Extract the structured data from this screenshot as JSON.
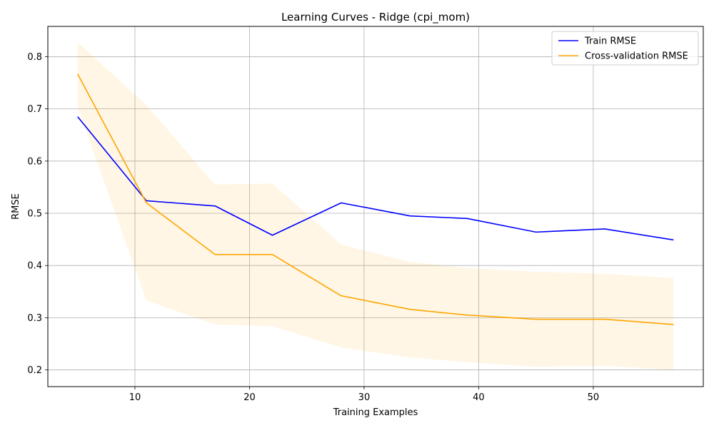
{
  "chart_data": {
    "type": "line",
    "title": "Learning Curves - Ridge (cpi_mom)",
    "xlabel": "Training Examples",
    "ylabel": "RMSE",
    "xlim": [
      2.4,
      59.6
    ],
    "ylim": [
      0.168,
      0.858
    ],
    "xticks": [
      10,
      20,
      30,
      40,
      50
    ],
    "yticks": [
      0.2,
      0.3,
      0.4,
      0.5,
      0.6,
      0.7,
      0.8
    ],
    "grid": true,
    "legend_position": "top-right",
    "x": [
      5,
      11,
      17,
      22,
      28,
      34,
      39,
      45,
      51,
      57
    ],
    "series": [
      {
        "name": "Train RMSE",
        "color": "#0000ff",
        "values": [
          0.685,
          0.524,
          0.514,
          0.458,
          0.52,
          0.495,
          0.49,
          0.464,
          0.47,
          0.449
        ]
      },
      {
        "name": "Cross-validation RMSE",
        "color": "#ffa500",
        "values": [
          0.767,
          0.52,
          0.421,
          0.421,
          0.342,
          0.316,
          0.305,
          0.297,
          0.297,
          0.287
        ],
        "band_upper": [
          0.828,
          0.707,
          0.555,
          0.557,
          0.44,
          0.407,
          0.395,
          0.388,
          0.384,
          0.376
        ],
        "band_lower": [
          0.704,
          0.333,
          0.287,
          0.284,
          0.243,
          0.224,
          0.215,
          0.206,
          0.208,
          0.2
        ],
        "band_color": "#ffa500"
      }
    ]
  }
}
